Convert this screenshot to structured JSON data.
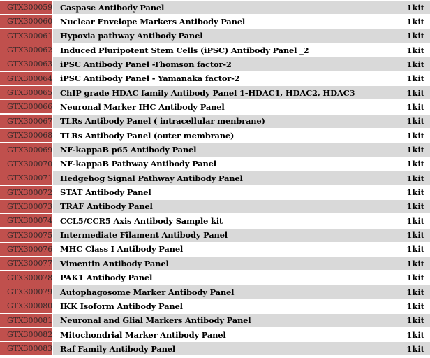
{
  "colors": {
    "code_bg": "#c0504d",
    "stripe": "#d9d9d9",
    "plain": "#ffffff"
  },
  "rows": [
    {
      "code": "GTX300059",
      "name": "Caspase Antibody Panel",
      "qty": "1kit"
    },
    {
      "code": "GTX300060",
      "name": "Nuclear Envelope Markers Antibody Panel",
      "qty": "1kit"
    },
    {
      "code": "GTX300061",
      "name": "Hypoxia pathway Antibody Panel",
      "qty": "1kit"
    },
    {
      "code": "GTX300062",
      "name": "Induced Pluripotent Stem Cells (iPSC) Antibody Panel _2",
      "qty": "1kit"
    },
    {
      "code": "GTX300063",
      "name": "iPSC Antibody Panel -Thomson factor-2",
      "qty": "1kit"
    },
    {
      "code": "GTX300064",
      "name": "iPSC Antibody Panel - Yamanaka factor-2",
      "qty": "1kit"
    },
    {
      "code": "GTX300065",
      "name": "ChIP grade HDAC family Antibody Panel 1-HDAC1, HDAC2, HDAC3",
      "qty": "1kit"
    },
    {
      "code": "GTX300066",
      "name": "Neuronal Marker IHC Antibody Panel",
      "qty": "1kit"
    },
    {
      "code": "GTX300067",
      "name": "TLRs Antibody Panel ( intracellular menbrane)",
      "qty": "1kit"
    },
    {
      "code": "GTX300068",
      "name": "TLRs Antibody Panel (outer membrane)",
      "qty": "1kit"
    },
    {
      "code": "GTX300069",
      "name": "NF-kappaB p65 Antibody Panel",
      "qty": "1kit"
    },
    {
      "code": "GTX300070",
      "name": "NF-kappaB Pathway Antibody Panel",
      "qty": "1kit"
    },
    {
      "code": "GTX300071",
      "name": "Hedgehog Signal Pathway Antibody Panel",
      "qty": "1kit"
    },
    {
      "code": "GTX300072",
      "name": "STAT Antibody Panel",
      "qty": "1kit"
    },
    {
      "code": "GTX300073",
      "name": "TRAF Antibody Panel",
      "qty": "1kit"
    },
    {
      "code": "GTX300074",
      "name": "CCL5/CCR5 Axis Antibody Sample kit",
      "qty": "1kit"
    },
    {
      "code": "GTX300075",
      "name": "Intermediate Filament Antibody Panel",
      "qty": "1kit"
    },
    {
      "code": "GTX300076",
      "name": "MHC Class I Antibody Panel",
      "qty": "1kit"
    },
    {
      "code": "GTX300077",
      "name": "Vimentin Antibody Panel",
      "qty": "1kit"
    },
    {
      "code": "GTX300078",
      "name": "PAK1 Antibody Panel",
      "qty": "1kit"
    },
    {
      "code": "GTX300079",
      "name": "Autophagosome Marker Antibody Panel",
      "qty": "1kit"
    },
    {
      "code": "GTX300080",
      "name": "IKK Isoform Antibody Panel",
      "qty": "1kit"
    },
    {
      "code": "GTX300081",
      "name": "Neuronal and Glial Markers Antibody Panel",
      "qty": "1kit"
    },
    {
      "code": "GTX300082",
      "name": "Mitochondrial Marker Antibody Panel",
      "qty": "1kit"
    },
    {
      "code": "GTX300083",
      "name": "Raf Family Antibody Panel",
      "qty": "1kit"
    }
  ]
}
